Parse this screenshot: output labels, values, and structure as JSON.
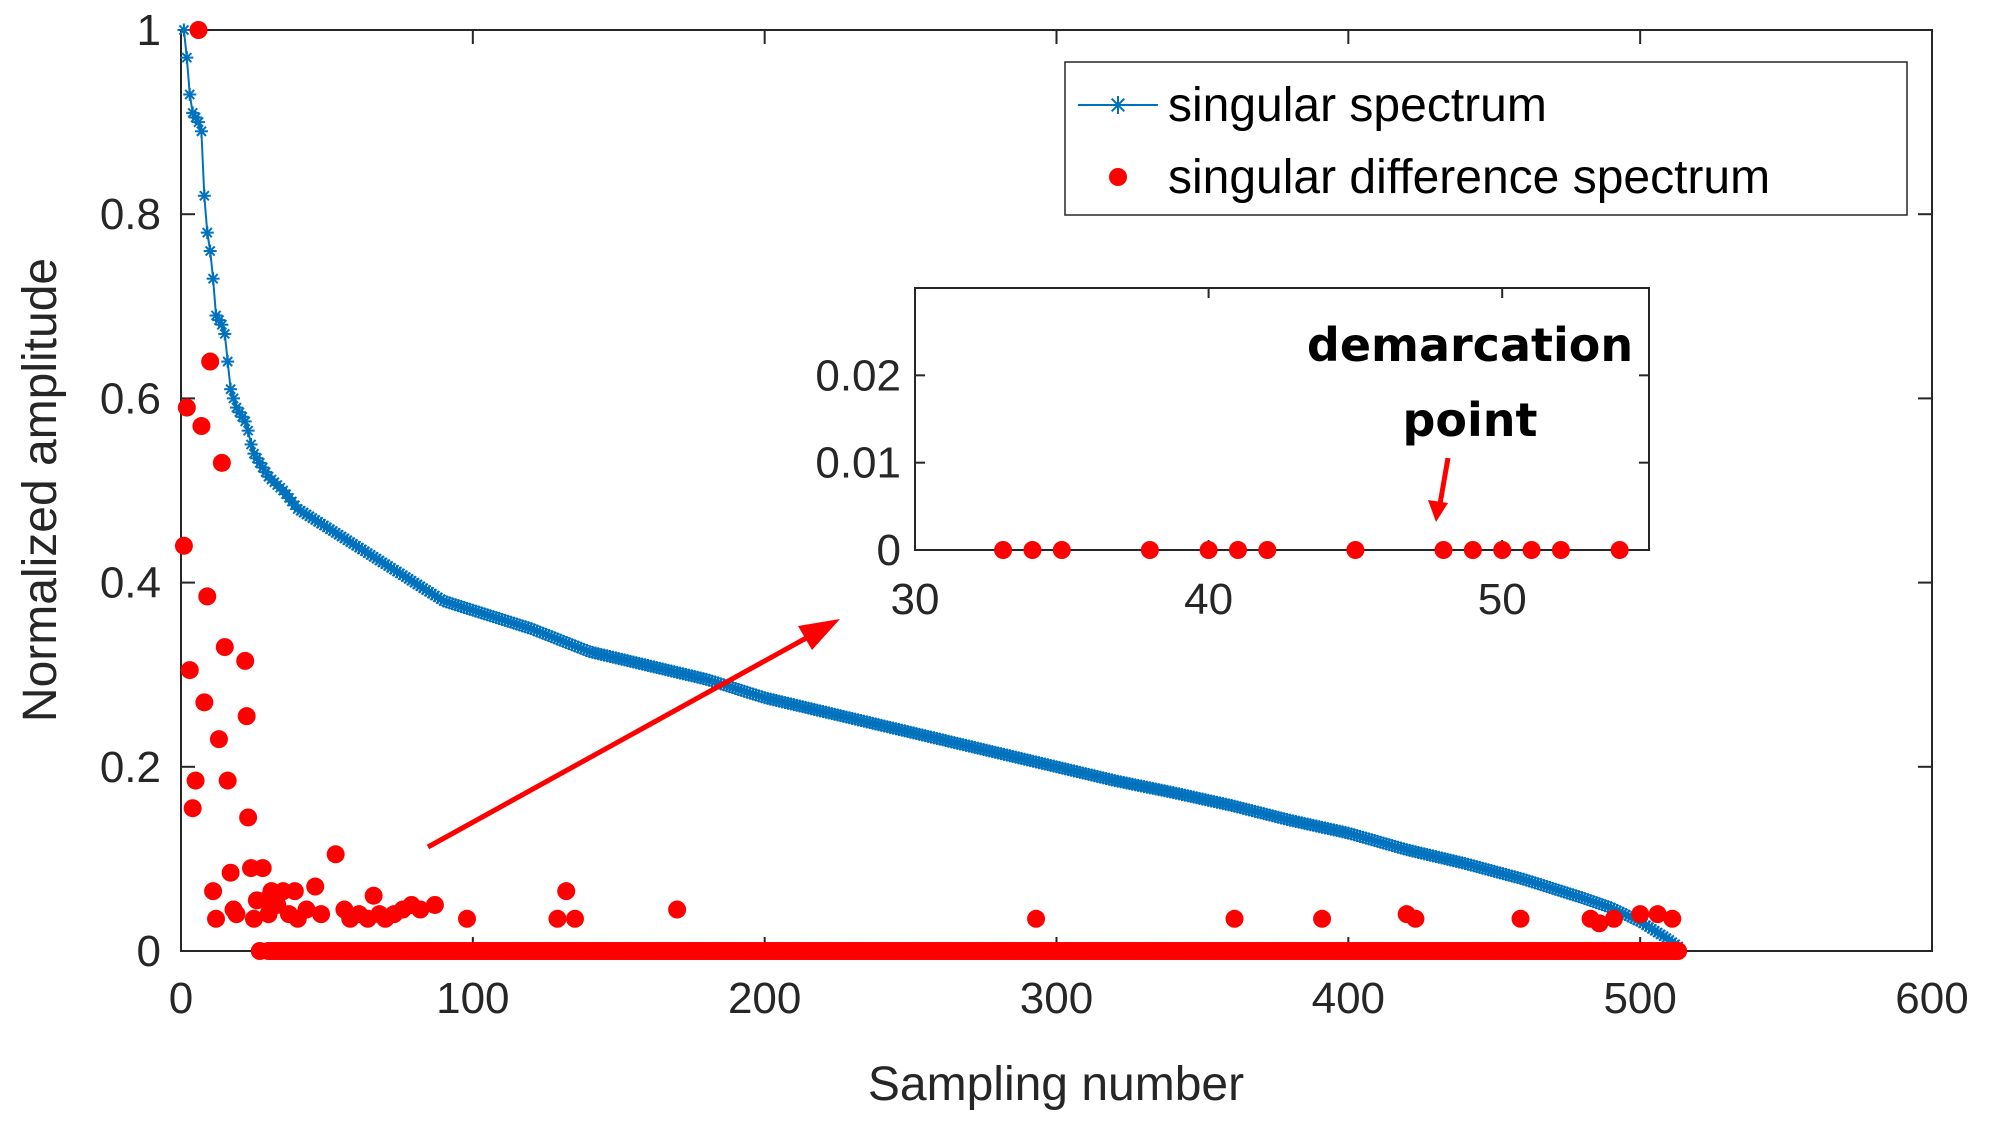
{
  "chart_data": {
    "type": "scatter",
    "xlabel": "Sampling number",
    "ylabel": "Normalized amplitude",
    "xlim": [
      0,
      600
    ],
    "ylim": [
      0,
      1
    ],
    "xticks": [
      0,
      100,
      200,
      300,
      400,
      500,
      600
    ],
    "yticks": [
      0,
      0.2,
      0.4,
      0.6,
      0.8,
      1
    ],
    "xtick_labels": [
      "0",
      "100",
      "200",
      "300",
      "400",
      "500",
      "600"
    ],
    "ytick_labels": [
      "0",
      "0.2",
      "0.4",
      "0.6",
      "0.8",
      "1"
    ],
    "grid": false,
    "legend_position": "top-right",
    "series": [
      {
        "name": "singular spectrum",
        "style": "line-with-star-markers",
        "color": "#0072BD",
        "points": [
          [
            1,
            1.0
          ],
          [
            2,
            0.97
          ],
          [
            3,
            0.93
          ],
          [
            4,
            0.91
          ],
          [
            5,
            0.905
          ],
          [
            6,
            0.9
          ],
          [
            7,
            0.89
          ],
          [
            8,
            0.82
          ],
          [
            9,
            0.78
          ],
          [
            10,
            0.76
          ],
          [
            11,
            0.73
          ],
          [
            12,
            0.69
          ],
          [
            13,
            0.685
          ],
          [
            14,
            0.68
          ],
          [
            15,
            0.67
          ],
          [
            16,
            0.64
          ],
          [
            17,
            0.61
          ],
          [
            18,
            0.6
          ],
          [
            19,
            0.59
          ],
          [
            20,
            0.585
          ],
          [
            21,
            0.58
          ],
          [
            22,
            0.575
          ],
          [
            23,
            0.565
          ],
          [
            24,
            0.55
          ],
          [
            25,
            0.54
          ],
          [
            30,
            0.515
          ],
          [
            35,
            0.5
          ],
          [
            40,
            0.48
          ],
          [
            50,
            0.46
          ],
          [
            60,
            0.44
          ],
          [
            70,
            0.42
          ],
          [
            80,
            0.4
          ],
          [
            90,
            0.38
          ],
          [
            100,
            0.37
          ],
          [
            120,
            0.35
          ],
          [
            140,
            0.325
          ],
          [
            160,
            0.31
          ],
          [
            180,
            0.295
          ],
          [
            200,
            0.275
          ],
          [
            220,
            0.26
          ],
          [
            240,
            0.245
          ],
          [
            260,
            0.23
          ],
          [
            280,
            0.215
          ],
          [
            300,
            0.2
          ],
          [
            320,
            0.185
          ],
          [
            340,
            0.172
          ],
          [
            360,
            0.158
          ],
          [
            380,
            0.142
          ],
          [
            400,
            0.128
          ],
          [
            420,
            0.11
          ],
          [
            440,
            0.095
          ],
          [
            460,
            0.078
          ],
          [
            480,
            0.058
          ],
          [
            490,
            0.047
          ],
          [
            500,
            0.032
          ],
          [
            505,
            0.022
          ],
          [
            510,
            0.012
          ],
          [
            513,
            0.005
          ]
        ]
      },
      {
        "name": "singular difference spectrum",
        "style": "dots",
        "color": "#FF0000",
        "points": [
          [
            1,
            0.44
          ],
          [
            2,
            0.59
          ],
          [
            3,
            0.305
          ],
          [
            4,
            0.155
          ],
          [
            5,
            0.185
          ],
          [
            6,
            1.0
          ],
          [
            7,
            0.57
          ],
          [
            8,
            0.27
          ],
          [
            9,
            0.385
          ],
          [
            10,
            0.64
          ],
          [
            11,
            0.065
          ],
          [
            12,
            0.035
          ],
          [
            13,
            0.23
          ],
          [
            14,
            0.53
          ],
          [
            15,
            0.33
          ],
          [
            16,
            0.185
          ],
          [
            17,
            0.085
          ],
          [
            18,
            0.045
          ],
          [
            19,
            0.04
          ],
          [
            22,
            0.315
          ],
          [
            22.5,
            0.255
          ],
          [
            23,
            0.145
          ],
          [
            24,
            0.09
          ],
          [
            25,
            0.035
          ],
          [
            26,
            0.055
          ],
          [
            27,
            0.0
          ],
          [
            28,
            0.09
          ],
          [
            29,
            0.055
          ],
          [
            30,
            0.04
          ],
          [
            31,
            0.065
          ],
          [
            33,
            0.05
          ],
          [
            35,
            0.065
          ],
          [
            37,
            0.04
          ],
          [
            39,
            0.065
          ],
          [
            40,
            0.035
          ],
          [
            43,
            0.045
          ],
          [
            46,
            0.07
          ],
          [
            48,
            0.04
          ],
          [
            53,
            0.105
          ],
          [
            56,
            0.045
          ],
          [
            58,
            0.035
          ],
          [
            61,
            0.04
          ],
          [
            64,
            0.035
          ],
          [
            66,
            0.06
          ],
          [
            68,
            0.04
          ],
          [
            70,
            0.035
          ],
          [
            73,
            0.04
          ],
          [
            76,
            0.045
          ],
          [
            79,
            0.05
          ],
          [
            82,
            0.045
          ],
          [
            87,
            0.05
          ],
          [
            98,
            0.035
          ],
          [
            129,
            0.035
          ],
          [
            132,
            0.065
          ],
          [
            135,
            0.035
          ],
          [
            170,
            0.045
          ],
          [
            293,
            0.035
          ],
          [
            361,
            0.035
          ],
          [
            391,
            0.035
          ],
          [
            420,
            0.04
          ],
          [
            423,
            0.035
          ],
          [
            459,
            0.035
          ],
          [
            483,
            0.035
          ],
          [
            486,
            0.03
          ],
          [
            491,
            0.035
          ],
          [
            500,
            0.04
          ],
          [
            506,
            0.04
          ],
          [
            511,
            0.035
          ]
        ],
        "zero_run": {
          "from": 30,
          "to": 513,
          "value": 0
        }
      }
    ],
    "inset": {
      "xlim": [
        30,
        55
      ],
      "ylim": [
        0,
        0.03
      ],
      "xticks": [
        30,
        40,
        50
      ],
      "yticks": [
        0,
        0.01,
        0.02
      ],
      "xtick_labels": [
        "30",
        "40",
        "50"
      ],
      "ytick_labels": [
        "0",
        "0.01",
        "0.02"
      ],
      "points": [
        [
          33,
          0
        ],
        [
          34,
          0
        ],
        [
          35,
          0
        ],
        [
          38,
          0
        ],
        [
          40,
          0
        ],
        [
          41,
          0
        ],
        [
          42,
          0
        ],
        [
          45,
          0
        ],
        [
          48,
          0
        ],
        [
          49,
          0
        ],
        [
          50,
          0
        ],
        [
          51,
          0
        ],
        [
          52,
          0
        ],
        [
          54,
          0
        ]
      ],
      "annotation": {
        "line1": "demarcation",
        "line2": "point",
        "points_to_x": 48
      }
    }
  }
}
